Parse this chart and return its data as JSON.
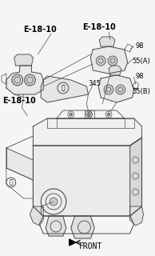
{
  "bg_color": "#f5f5f5",
  "line_color": "#4a4a4a",
  "text_color": "#000000",
  "labels": {
    "E18_10_top_left": "E-18-10",
    "E18_10_top_right": "E-18-10",
    "E18_10_bottom_left": "E-18-10",
    "lbl_98_top": "98",
    "lbl_55A": "55(A)",
    "lbl_345": "345",
    "lbl_98_bot": "98",
    "lbl_55B": "55(B)",
    "lbl_front": "FRONT",
    "lbl_D": "ⓓ"
  },
  "font_bold": 7,
  "font_small": 6,
  "font_front": 7
}
